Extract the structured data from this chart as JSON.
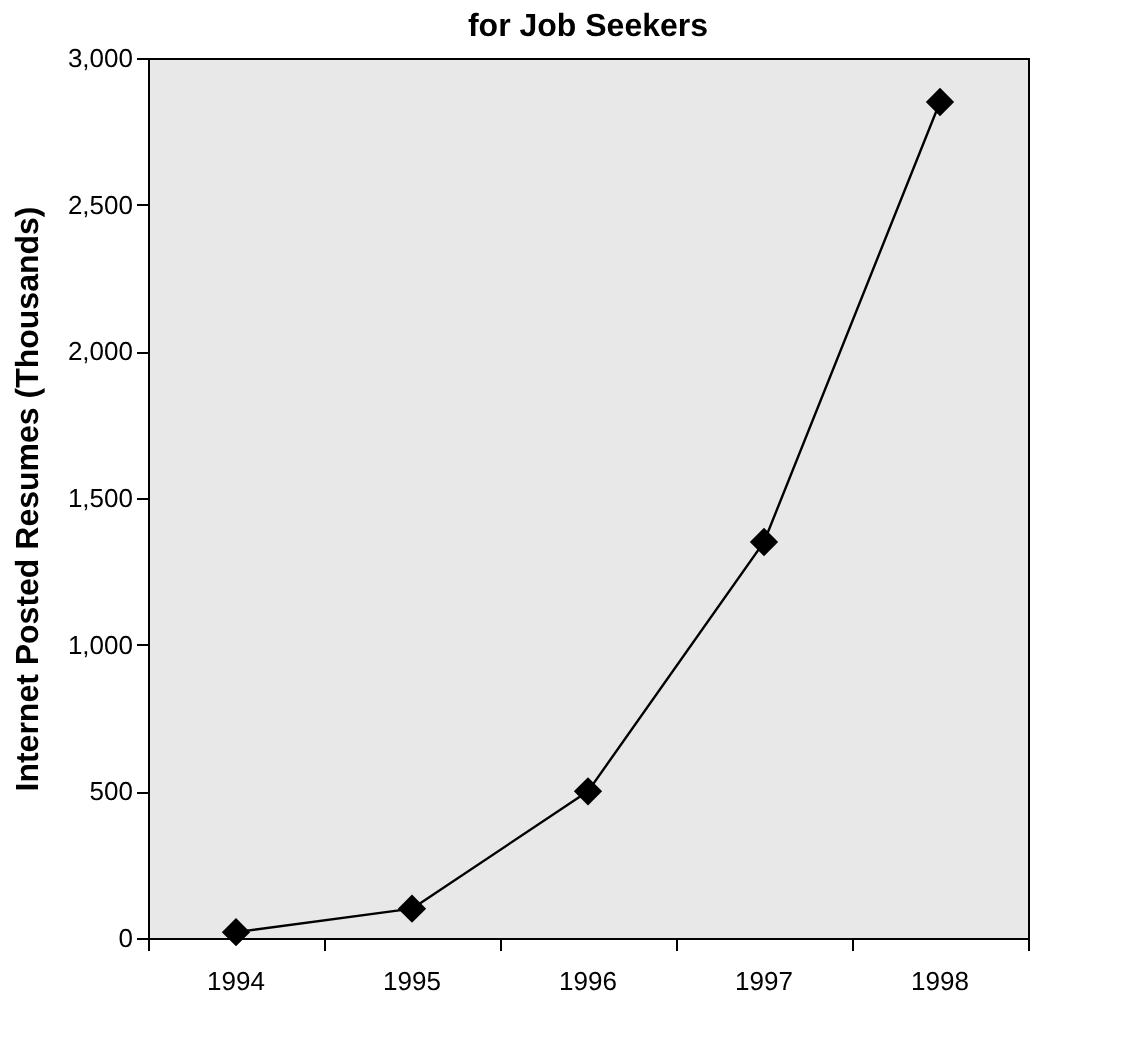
{
  "chart_data": {
    "type": "line",
    "title": "for Job Seekers",
    "ylabel": "Internet Posted Resumes (Thousands)",
    "categories": [
      "1994",
      "1995",
      "1996",
      "1997",
      "1998"
    ],
    "series": [
      {
        "color": "#000000",
        "values": [
          20,
          100,
          500,
          1350,
          2850
        ]
      }
    ],
    "ylim": [
      0,
      3000
    ],
    "yticks": [
      0,
      500,
      {
        "value": 1000,
        "label": "1,000"
      },
      {
        "value": 1500,
        "label": "1,500"
      },
      {
        "value": 2000,
        "label": "2,000"
      },
      {
        "value": 2500,
        "label": "2,500"
      },
      {
        "value": 3000,
        "label": "3,000"
      }
    ],
    "grid": false,
    "marker": "diamond",
    "line_style": "solid"
  }
}
